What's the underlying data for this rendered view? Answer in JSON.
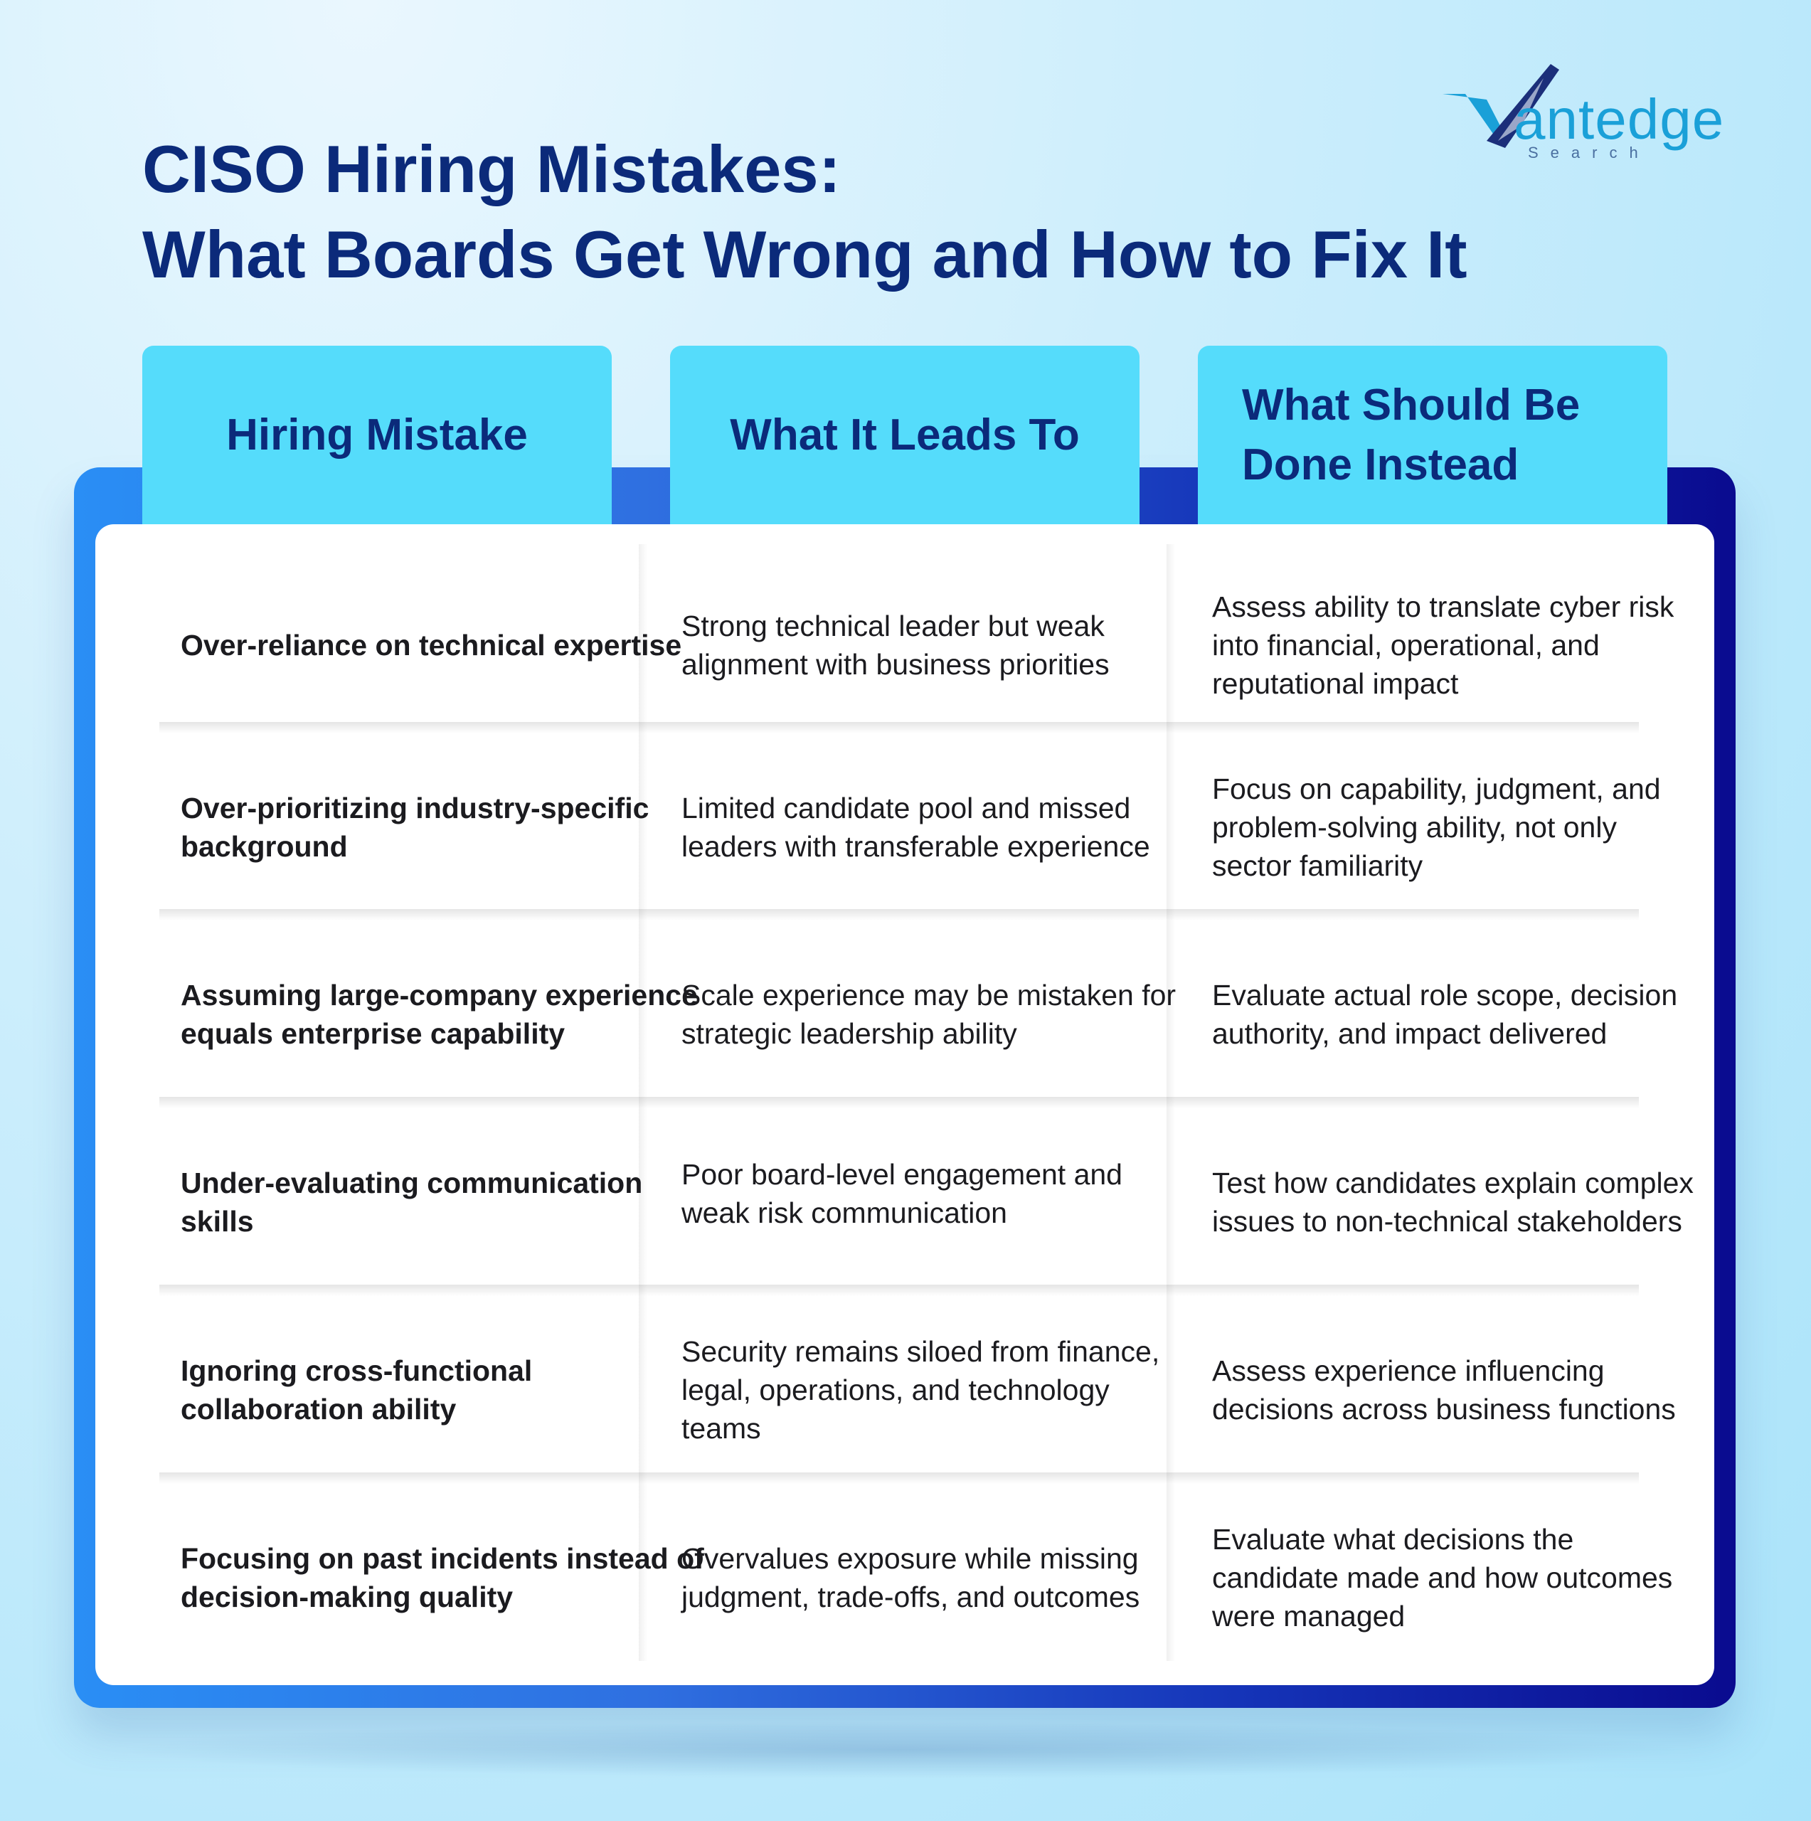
{
  "brand": {
    "name": "antedge",
    "sub": "Search",
    "accent": "#1aa0d8"
  },
  "title": {
    "line1": "CISO Hiring Mistakes:",
    "line2": "What Boards Get Wrong and How to Fix It"
  },
  "colors": {
    "title": "#0b2a7a",
    "header_bg": "#55dcfb",
    "frame_start": "#2a8ef5",
    "frame_end": "#0a0b8f"
  },
  "table": {
    "headers": [
      "Hiring Mistake",
      "What It Leads To",
      "What Should Be Done Instead"
    ],
    "rows": [
      {
        "mistake": "Over-reliance on technical expertise",
        "leads_to": "Strong technical leader but weak alignment with business priorities",
        "fix": "Assess ability to translate cyber risk into financial, operational, and reputational impact"
      },
      {
        "mistake": "Over-prioritizing industry-specific background",
        "leads_to": "Limited candidate pool and missed leaders with transferable experience",
        "fix": "Focus on capability, judgment, and problem-solving ability, not only sector familiarity"
      },
      {
        "mistake": "Assuming large-company experience equals enterprise capability",
        "leads_to": "Scale experience may be mistaken for strategic leadership ability",
        "fix": "Evaluate actual role scope, decision authority, and impact delivered"
      },
      {
        "mistake": "Under-evaluating communication skills",
        "leads_to": "Poor board-level engagement and weak risk communication",
        "fix": "Test how candidates explain complex issues to non-technical stakeholders"
      },
      {
        "mistake": "Ignoring cross-functional collaboration ability",
        "leads_to": "Security remains siloed from finance, legal, operations, and technology teams",
        "fix": "Assess experience influencing decisions across business functions"
      },
      {
        "mistake": "Focusing on past incidents instead of decision-making quality",
        "leads_to": "Overvalues exposure while missing judgment, trade-offs, and outcomes",
        "fix": "Evaluate what decisions the candidate made and how outcomes were managed"
      }
    ]
  }
}
